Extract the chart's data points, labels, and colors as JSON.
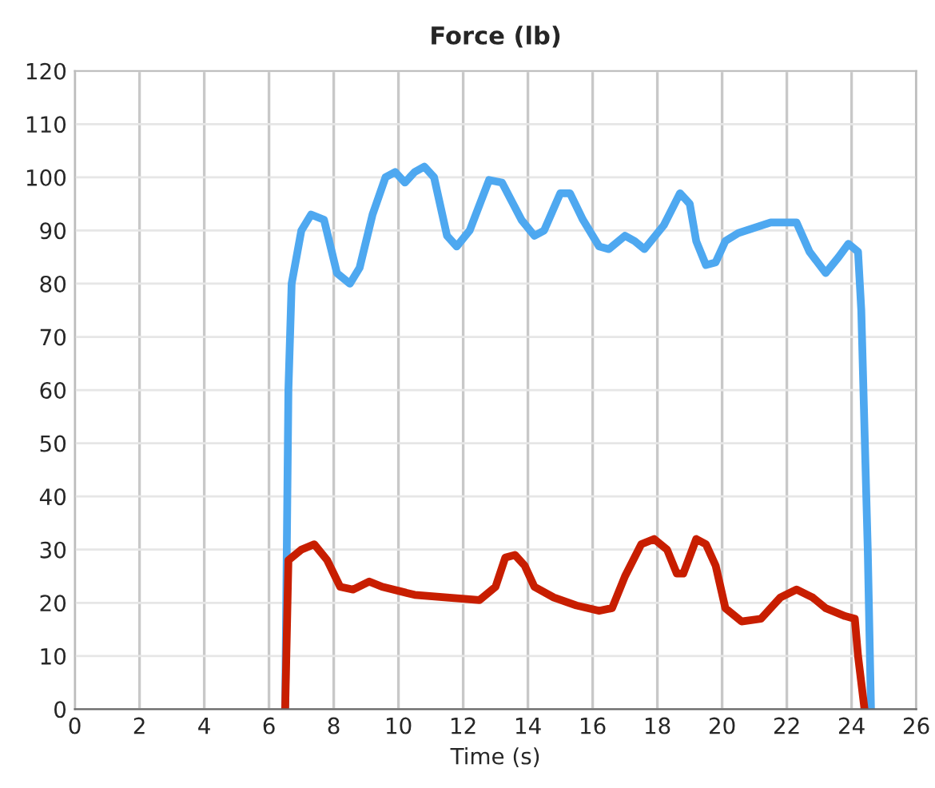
{
  "chart_data": {
    "type": "line",
    "title": "Force (lb)",
    "xlabel": "Time (s)",
    "xlim": [
      0,
      26
    ],
    "xticks": [
      0,
      2,
      4,
      6,
      8,
      10,
      12,
      14,
      16,
      18,
      20,
      22,
      24,
      26
    ],
    "ylim": [
      0,
      120
    ],
    "yticks": [
      0,
      10,
      20,
      30,
      40,
      50,
      60,
      70,
      80,
      90,
      100,
      110,
      120
    ],
    "grid": true,
    "marker": "none",
    "line_style": "solid",
    "series": [
      {
        "color": "#4ea8f0",
        "x": [
          6.5,
          6.6,
          6.7,
          7,
          7.3,
          7.7,
          8.1,
          8.5,
          8.8,
          9.2,
          9.6,
          9.9,
          10.2,
          10.5,
          10.8,
          11.1,
          11.5,
          11.8,
          12.2,
          12.8,
          13.2,
          13.8,
          14.2,
          14.5,
          15,
          15.3,
          15.7,
          16.2,
          16.5,
          17,
          17.3,
          17.6,
          18.2,
          18.7,
          19,
          19.2,
          19.5,
          19.8,
          20.1,
          20.5,
          21.5,
          22.3,
          22.7,
          23.2,
          23.6,
          23.9,
          24.2,
          24.3,
          24.5,
          24.6
        ],
        "values": [
          0,
          60,
          80,
          90,
          93,
          92,
          82,
          80,
          83,
          93,
          100,
          101,
          99,
          101,
          102,
          100,
          89,
          87,
          90,
          99.5,
          99,
          92,
          89,
          90,
          97,
          97,
          92,
          87,
          86.5,
          89,
          88,
          86.5,
          91,
          97,
          95,
          88,
          83.5,
          84,
          88,
          89.5,
          91.5,
          91.5,
          86,
          82,
          85,
          87.5,
          86,
          75,
          30,
          0
        ]
      },
      {
        "color": "#c81e00",
        "x": [
          6.5,
          6.6,
          7,
          7.4,
          7.8,
          8.2,
          8.6,
          9.1,
          9.5,
          10.5,
          11.5,
          12.5,
          13,
          13.3,
          13.6,
          13.9,
          14.2,
          14.8,
          15.5,
          16.2,
          16.6,
          17,
          17.5,
          17.9,
          18.3,
          18.6,
          18.8,
          19.2,
          19.5,
          19.8,
          20.1,
          20.6,
          21.2,
          21.8,
          22.3,
          22.8,
          23.2,
          23.8,
          24.1,
          24.2,
          24.4
        ],
        "values": [
          0,
          28,
          30,
          31,
          28,
          23,
          22.5,
          24,
          23,
          21.5,
          21,
          20.5,
          23,
          28.5,
          29,
          27,
          23,
          21,
          19.5,
          18.5,
          19,
          25,
          31,
          32,
          30,
          25.5,
          25.5,
          32,
          31,
          27,
          19,
          16.5,
          17,
          21,
          22.5,
          21,
          19,
          17.5,
          17,
          10,
          0
        ]
      }
    ]
  }
}
